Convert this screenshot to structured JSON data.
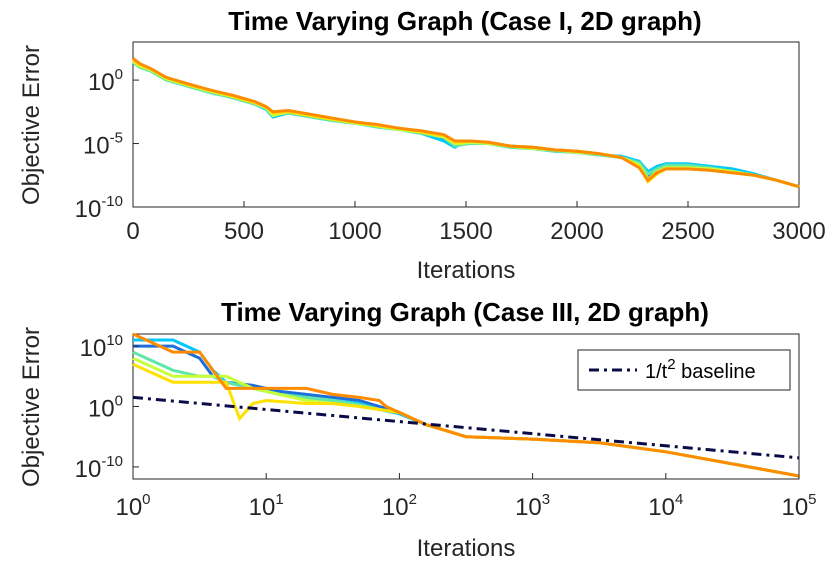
{
  "colors": {
    "series": [
      "#1f6fd9",
      "#00c8ff",
      "#5fe6a8",
      "#c8ff3c",
      "#ffe100",
      "#ff8c00"
    ],
    "baseline": "#0b0b4a",
    "axis": "#262626"
  },
  "chart_data": [
    {
      "type": "line",
      "title": "Time Varying Graph (Case I, 2D graph)",
      "xlabel": "Iterations",
      "ylabel": "Objective Error",
      "xscale": "linear",
      "yscale": "log",
      "xlim": [
        0,
        3000
      ],
      "ylim_exp": [
        -10,
        3
      ],
      "xticks": [
        0,
        500,
        1000,
        1500,
        2000,
        2500,
        3000
      ],
      "xtick_labels": [
        "0",
        "500",
        "1000",
        "1500",
        "2000",
        "2500",
        "3000"
      ],
      "yticks_exp": [
        -10,
        -5,
        0
      ],
      "ytick_labels": [
        "10",
        "10",
        "10"
      ],
      "ytick_exps": [
        "-10",
        "-5",
        "0"
      ],
      "legend": "none",
      "grid": false,
      "series": [
        {
          "x": [
            0,
            30,
            80,
            150,
            250,
            350,
            450,
            550,
            600,
            630,
            700,
            800,
            900,
            1000,
            1100,
            1200,
            1300,
            1400,
            1450,
            1480,
            1520,
            1600,
            1700,
            1800,
            1900,
            2000,
            2100,
            2200,
            2280,
            2320,
            2360,
            2400,
            2500,
            2600,
            2700,
            2800,
            2900,
            3000
          ],
          "y_log10": [
            1.5,
            1.2,
            0.9,
            0.2,
            -0.4,
            -0.8,
            -1.3,
            -1.8,
            -2.2,
            -2.6,
            -2.5,
            -2.8,
            -3.1,
            -3.3,
            -3.6,
            -3.8,
            -4.1,
            -4.6,
            -5.0,
            -4.9,
            -4.9,
            -4.9,
            -5.2,
            -5.3,
            -5.5,
            -5.6,
            -5.8,
            -6.1,
            -6.6,
            -7.6,
            -7.3,
            -7.0,
            -7.0,
            -7.1,
            -7.3,
            -7.5,
            -7.9,
            -8.4
          ]
        },
        {
          "x": [
            0,
            30,
            80,
            150,
            250,
            350,
            450,
            550,
            600,
            630,
            700,
            800,
            900,
            1000,
            1100,
            1200,
            1300,
            1400,
            1450,
            1480,
            1520,
            1600,
            1700,
            1800,
            1900,
            2000,
            2100,
            2200,
            2280,
            2320,
            2360,
            2400,
            2500,
            2600,
            2700,
            2800,
            2900,
            3000
          ],
          "y_log10": [
            1.6,
            1.1,
            0.8,
            0.1,
            -0.5,
            -0.9,
            -1.4,
            -1.9,
            -2.3,
            -2.9,
            -2.6,
            -2.9,
            -3.2,
            -3.4,
            -3.7,
            -3.9,
            -4.2,
            -4.8,
            -5.3,
            -5.0,
            -5.0,
            -5.0,
            -5.3,
            -5.4,
            -5.6,
            -5.7,
            -5.9,
            -6.0,
            -6.4,
            -7.2,
            -6.8,
            -6.6,
            -6.6,
            -6.8,
            -7.0,
            -7.4,
            -7.9,
            -8.4
          ]
        },
        {
          "x": [
            0,
            30,
            80,
            150,
            250,
            350,
            450,
            550,
            600,
            630,
            700,
            800,
            900,
            1000,
            1100,
            1200,
            1300,
            1400,
            1450,
            1480,
            1520,
            1600,
            1700,
            1800,
            1900,
            2000,
            2100,
            2200,
            2280,
            2320,
            2360,
            2400,
            2500,
            2600,
            2700,
            2800,
            2900,
            3000
          ],
          "y_log10": [
            1.4,
            1.0,
            0.7,
            0.0,
            -0.5,
            -1.0,
            -1.4,
            -1.9,
            -2.2,
            -2.7,
            -2.6,
            -2.9,
            -3.2,
            -3.4,
            -3.7,
            -3.9,
            -4.2,
            -4.5,
            -5.2,
            -5.1,
            -5.0,
            -5.0,
            -5.3,
            -5.4,
            -5.6,
            -5.7,
            -5.9,
            -6.1,
            -6.5,
            -7.4,
            -7.0,
            -6.7,
            -6.7,
            -6.9,
            -7.2,
            -7.5,
            -7.9,
            -8.4
          ]
        },
        {
          "x": [
            0,
            30,
            80,
            150,
            250,
            350,
            450,
            550,
            600,
            630,
            700,
            800,
            900,
            1000,
            1100,
            1200,
            1300,
            1400,
            1450,
            1480,
            1520,
            1600,
            1700,
            1800,
            1900,
            2000,
            2100,
            2200,
            2280,
            2320,
            2360,
            2400,
            2500,
            2600,
            2700,
            2800,
            2900,
            3000
          ],
          "y_log10": [
            1.5,
            1.1,
            0.8,
            0.1,
            -0.4,
            -0.9,
            -1.3,
            -1.8,
            -2.2,
            -2.8,
            -2.5,
            -2.8,
            -3.1,
            -3.4,
            -3.6,
            -3.9,
            -4.1,
            -4.5,
            -5.0,
            -5.0,
            -4.9,
            -5.0,
            -5.2,
            -5.4,
            -5.5,
            -5.7,
            -5.8,
            -6.1,
            -6.7,
            -7.8,
            -7.2,
            -6.9,
            -6.9,
            -7.0,
            -7.2,
            -7.5,
            -7.9,
            -8.4
          ]
        },
        {
          "x": [
            0,
            30,
            80,
            150,
            250,
            350,
            450,
            550,
            600,
            630,
            700,
            800,
            900,
            1000,
            1100,
            1200,
            1300,
            1400,
            1450,
            1480,
            1520,
            1600,
            1700,
            1800,
            1900,
            2000,
            2100,
            2200,
            2280,
            2320,
            2360,
            2400,
            2500,
            2600,
            2700,
            2800,
            2900,
            3000
          ],
          "y_log10": [
            1.6,
            1.2,
            0.9,
            0.2,
            -0.4,
            -0.8,
            -1.3,
            -1.8,
            -2.1,
            -2.6,
            -2.5,
            -2.8,
            -3.1,
            -3.3,
            -3.6,
            -3.8,
            -4.1,
            -4.4,
            -4.9,
            -4.9,
            -4.8,
            -4.9,
            -5.2,
            -5.3,
            -5.5,
            -5.6,
            -5.8,
            -6.1,
            -6.8,
            -8.0,
            -7.4,
            -7.0,
            -7.0,
            -7.1,
            -7.3,
            -7.5,
            -7.9,
            -8.4
          ]
        },
        {
          "x": [
            0,
            30,
            80,
            150,
            250,
            350,
            450,
            550,
            600,
            630,
            700,
            800,
            900,
            1000,
            1100,
            1200,
            1300,
            1400,
            1450,
            1480,
            1520,
            1600,
            1700,
            1800,
            1900,
            2000,
            2100,
            2200,
            2280,
            2320,
            2360,
            2400,
            2500,
            2600,
            2700,
            2800,
            2900,
            3000
          ],
          "y_log10": [
            1.7,
            1.3,
            0.9,
            0.2,
            -0.3,
            -0.8,
            -1.2,
            -1.7,
            -2.1,
            -2.5,
            -2.4,
            -2.7,
            -3.0,
            -3.3,
            -3.5,
            -3.8,
            -4.0,
            -4.3,
            -4.8,
            -4.8,
            -4.8,
            -4.9,
            -5.2,
            -5.3,
            -5.5,
            -5.6,
            -5.8,
            -6.1,
            -6.9,
            -7.9,
            -7.3,
            -7.0,
            -7.0,
            -7.1,
            -7.3,
            -7.5,
            -7.9,
            -8.4
          ]
        }
      ]
    },
    {
      "type": "line",
      "title": "Time Varying Graph (Case III, 2D graph)",
      "xlabel": "Iterations",
      "ylabel": "Objective Error",
      "xscale": "log",
      "yscale": "log",
      "xlim_exp": [
        0,
        5
      ],
      "ylim_exp": [
        -12,
        12
      ],
      "xticks_exp": [
        0,
        1,
        2,
        3,
        4,
        5
      ],
      "xtick_labels": [
        "10",
        "10",
        "10",
        "10",
        "10",
        "10"
      ],
      "xtick_exps": [
        "0",
        "1",
        "2",
        "3",
        "4",
        "5"
      ],
      "yticks_exp": [
        -10,
        0,
        10
      ],
      "ytick_labels": [
        "10",
        "10",
        "10"
      ],
      "ytick_exps": [
        "-10",
        "0",
        "10"
      ],
      "legend": "top-right",
      "legend_text": "1/t",
      "legend_sup": "2",
      "legend_text2": " baseline",
      "grid": false,
      "baseline": {
        "name": "1/t^2 baseline",
        "x_log10": [
          0,
          5
        ],
        "y_log10": [
          1.5,
          -8.5
        ]
      },
      "series": [
        {
          "x_log10": [
            0,
            0.3,
            0.5,
            0.6,
            0.7,
            0.9,
            1.1,
            1.3,
            1.5,
            1.7,
            1.85,
            2.0,
            2.2,
            2.5,
            3.0,
            3.5,
            4.0,
            4.5,
            5.0
          ],
          "y_log10": [
            10,
            10,
            8,
            5,
            4,
            3.5,
            2.5,
            2,
            1.5,
            1,
            0,
            -1,
            -3,
            -5,
            -5.4,
            -6,
            -7.5,
            -9.5,
            -11.5
          ]
        },
        {
          "x_log10": [
            0,
            0.3,
            0.5,
            0.6,
            0.7,
            0.9,
            1.1,
            1.3,
            1.5,
            1.7,
            1.85,
            2.0,
            2.2,
            2.5,
            3.0,
            3.5,
            4.0,
            4.5,
            5.0
          ],
          "y_log10": [
            11,
            11,
            9,
            6,
            4,
            3,
            2,
            1.5,
            1,
            0.5,
            -0.5,
            -1.2,
            -3,
            -5,
            -5.4,
            -6,
            -7.5,
            -9.5,
            -11.5
          ]
        },
        {
          "x_log10": [
            0,
            0.3,
            0.5,
            0.6,
            0.7,
            0.9,
            1.1,
            1.3,
            1.5,
            1.7,
            1.85,
            2.0,
            2.2,
            2.5,
            3.0,
            3.5,
            4.0,
            4.5,
            5.0
          ],
          "y_log10": [
            9,
            6,
            5,
            5,
            4,
            3,
            2,
            1.5,
            1,
            0.3,
            -0.5,
            -1,
            -3,
            -5,
            -5.4,
            -6,
            -7.5,
            -9.5,
            -11.5
          ]
        },
        {
          "x_log10": [
            0,
            0.3,
            0.5,
            0.6,
            0.7,
            0.9,
            1.1,
            1.3,
            1.5,
            1.7,
            1.85,
            2.0,
            2.2,
            2.5,
            3.0,
            3.5,
            4.0,
            4.5,
            5.0
          ],
          "y_log10": [
            8,
            5,
            5,
            5,
            5,
            3,
            2,
            1,
            0.5,
            0,
            -0.5,
            -1,
            -3,
            -5,
            -5.4,
            -6,
            -7.5,
            -9.5,
            -11.5
          ]
        },
        {
          "x_log10": [
            0,
            0.3,
            0.5,
            0.6,
            0.7,
            0.8,
            0.9,
            1.0,
            1.3,
            1.5,
            1.7,
            1.85,
            2.0,
            2.2,
            2.5,
            3.0,
            3.5,
            4.0,
            4.5,
            5.0
          ],
          "y_log10": [
            7,
            4,
            4,
            4,
            4,
            -2,
            0.5,
            1,
            0.5,
            0.5,
            0,
            -0.5,
            -1,
            -3,
            -5,
            -5.4,
            -6,
            -7.5,
            -9.5,
            -11.5
          ]
        },
        {
          "x_log10": [
            0,
            0.3,
            0.5,
            0.6,
            0.7,
            0.9,
            1.1,
            1.3,
            1.5,
            1.7,
            1.85,
            1.9,
            2.0,
            2.2,
            2.5,
            3.0,
            3.5,
            4.0,
            4.5,
            5.0
          ],
          "y_log10": [
            12,
            9,
            9,
            6,
            3,
            3,
            3,
            3,
            2,
            1.5,
            1,
            0,
            -1,
            -3,
            -5,
            -5.4,
            -6,
            -7.5,
            -9.5,
            -11.5
          ]
        }
      ]
    }
  ]
}
